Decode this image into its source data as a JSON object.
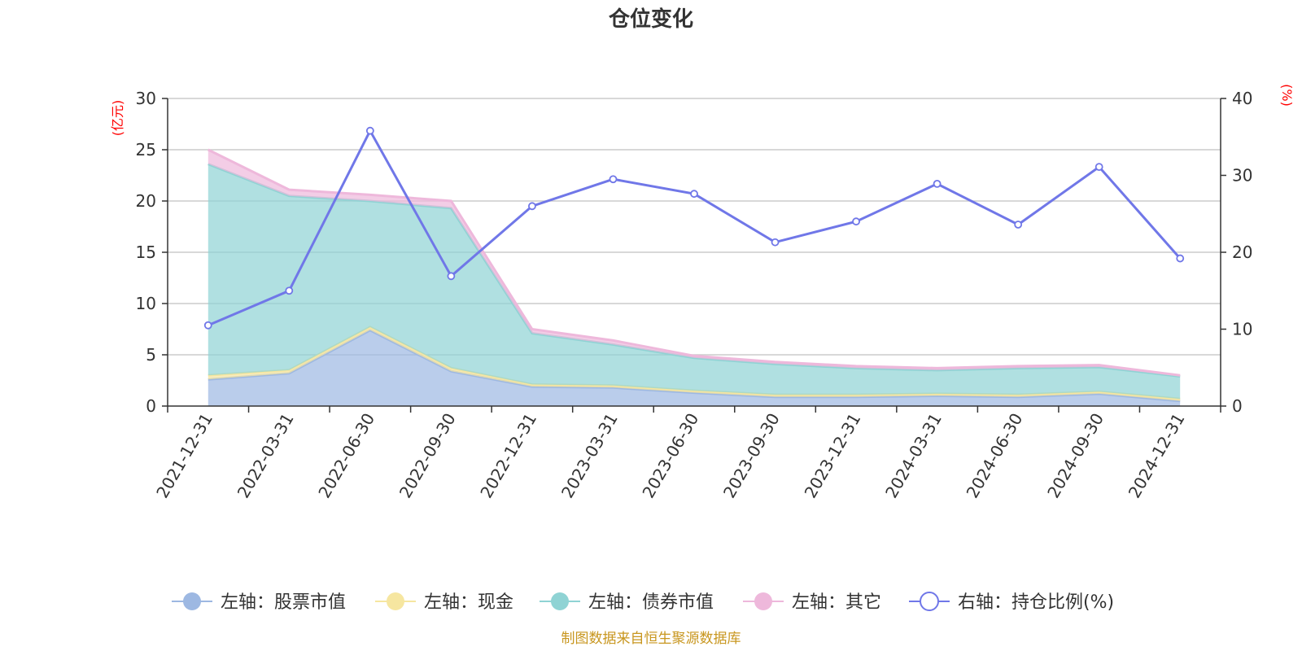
{
  "chart_data": {
    "type": "area",
    "title": "仓位变化",
    "categories": [
      "2021-12-31",
      "2022-03-31",
      "2022-06-30",
      "2022-09-30",
      "2022-12-31",
      "2023-03-31",
      "2023-06-30",
      "2023-09-30",
      "2023-12-31",
      "2024-03-31",
      "2024-06-30",
      "2024-09-30",
      "2024-12-31"
    ],
    "left_axis": {
      "unit": "(亿元)",
      "ylim": [
        0,
        30
      ],
      "ticks": [
        "0",
        "5",
        "10",
        "15",
        "20",
        "25",
        "30"
      ]
    },
    "right_axis": {
      "unit": "(%)",
      "ylim": [
        0,
        40
      ],
      "ticks": [
        "0",
        "10",
        "20",
        "30",
        "40"
      ]
    },
    "series": [
      {
        "name": "左轴：股票市值",
        "axis": "left",
        "stack": true,
        "color": "#9db8e2",
        "values": [
          2.6,
          3.2,
          7.4,
          3.4,
          1.9,
          1.8,
          1.3,
          0.9,
          0.9,
          1.0,
          0.9,
          1.2,
          0.5
        ]
      },
      {
        "name": "左轴：现金",
        "axis": "left",
        "stack": true,
        "color": "#f6e6a0",
        "values": [
          0.4,
          0.3,
          0.3,
          0.3,
          0.2,
          0.2,
          0.2,
          0.2,
          0.2,
          0.2,
          0.2,
          0.2,
          0.2
        ]
      },
      {
        "name": "左轴：债券市值",
        "axis": "left",
        "stack": true,
        "color": "#8fd3d4",
        "values": [
          20.6,
          17.0,
          12.3,
          15.6,
          5.0,
          4.0,
          3.2,
          3.0,
          2.6,
          2.3,
          2.6,
          2.4,
          2.2
        ]
      },
      {
        "name": "左轴：其它",
        "axis": "left",
        "stack": true,
        "color": "#eeb8db",
        "values": [
          1.4,
          0.6,
          0.6,
          0.7,
          0.4,
          0.4,
          0.2,
          0.2,
          0.2,
          0.2,
          0.2,
          0.2,
          0.1
        ]
      },
      {
        "name": "右轴：持仓比例(%)",
        "axis": "right",
        "stack": false,
        "type": "line",
        "color": "#7077e8",
        "values": [
          10.5,
          15.0,
          35.8,
          16.9,
          26.0,
          29.5,
          27.6,
          21.3,
          24.0,
          28.9,
          23.6,
          31.1,
          19.2
        ]
      }
    ],
    "grid": true,
    "legend_position": "bottom"
  },
  "footer": "制图数据来自恒生聚源数据库"
}
